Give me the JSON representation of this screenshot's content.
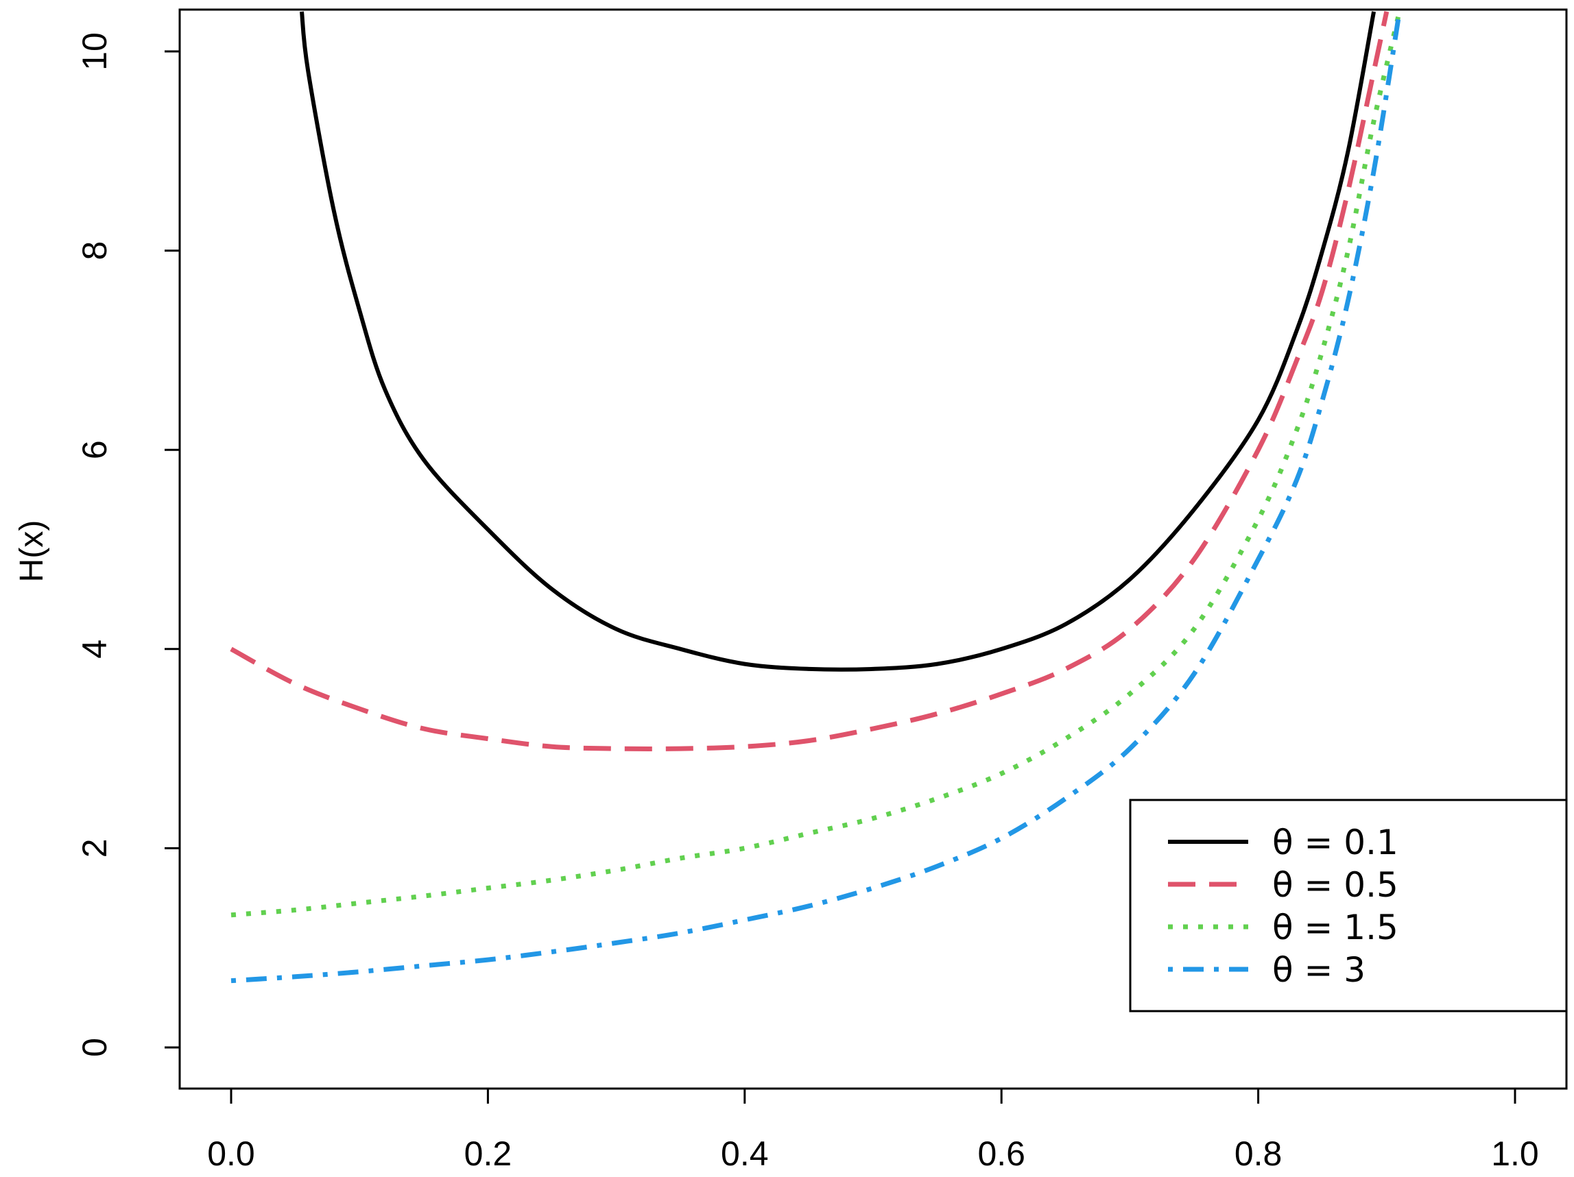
{
  "chart_data": {
    "type": "line",
    "title": "",
    "xlabel": "",
    "ylabel": "H(x)",
    "xlim": [
      0,
      1
    ],
    "ylim": [
      0,
      10
    ],
    "x_ticks": [
      0.0,
      0.2,
      0.4,
      0.6,
      0.8,
      1.0
    ],
    "x_tick_labels": [
      "0.0",
      "0.2",
      "0.4",
      "0.6",
      "0.8",
      "1.0"
    ],
    "y_ticks": [
      0,
      2,
      4,
      6,
      8,
      10
    ],
    "y_tick_labels": [
      "0",
      "2",
      "4",
      "6",
      "8",
      "10"
    ],
    "grid": false,
    "legend_position": "bottom-right",
    "series": [
      {
        "name": "θ = 0.1",
        "color": "#000000",
        "style": "solid",
        "x": [
          0.055,
          0.06,
          0.08,
          0.1,
          0.12,
          0.15,
          0.2,
          0.25,
          0.3,
          0.35,
          0.4,
          0.45,
          0.5,
          0.55,
          0.6,
          0.65,
          0.7,
          0.75,
          0.8,
          0.83,
          0.85,
          0.87,
          0.89
        ],
        "y": [
          10.4,
          9.8,
          8.4,
          7.4,
          6.6,
          5.9,
          5.2,
          4.6,
          4.2,
          4.0,
          3.85,
          3.8,
          3.8,
          3.85,
          4.0,
          4.25,
          4.7,
          5.4,
          6.3,
          7.2,
          8.0,
          9.0,
          10.4
        ],
        "y_top_clip": true
      },
      {
        "name": "θ = 0.5",
        "color": "#DF536B",
        "style": "dashed",
        "x": [
          0.0,
          0.05,
          0.1,
          0.15,
          0.2,
          0.25,
          0.3,
          0.35,
          0.4,
          0.45,
          0.5,
          0.55,
          0.6,
          0.65,
          0.7,
          0.75,
          0.8,
          0.83,
          0.85,
          0.87,
          0.89,
          0.9
        ],
        "y": [
          4.0,
          3.65,
          3.4,
          3.2,
          3.1,
          3.02,
          3.0,
          3.0,
          3.02,
          3.08,
          3.2,
          3.35,
          3.55,
          3.8,
          4.2,
          4.9,
          6.0,
          6.9,
          7.6,
          8.6,
          9.8,
          10.4
        ]
      },
      {
        "name": "θ = 1.5",
        "color": "#61D04F",
        "style": "dotted",
        "x": [
          0.0,
          0.05,
          0.1,
          0.15,
          0.2,
          0.25,
          0.3,
          0.35,
          0.4,
          0.45,
          0.5,
          0.55,
          0.6,
          0.65,
          0.7,
          0.75,
          0.8,
          0.83,
          0.85,
          0.87,
          0.89,
          0.91
        ],
        "y": [
          1.33,
          1.38,
          1.45,
          1.52,
          1.6,
          1.68,
          1.78,
          1.9,
          2.0,
          2.15,
          2.3,
          2.5,
          2.75,
          3.1,
          3.55,
          4.2,
          5.3,
          6.2,
          7.0,
          8.0,
          9.3,
          10.4
        ]
      },
      {
        "name": "θ = 3",
        "color": "#2297E6",
        "style": "dotdash",
        "x": [
          0.0,
          0.05,
          0.1,
          0.15,
          0.2,
          0.25,
          0.3,
          0.35,
          0.4,
          0.45,
          0.5,
          0.55,
          0.6,
          0.65,
          0.7,
          0.75,
          0.8,
          0.83,
          0.85,
          0.87,
          0.89,
          0.91
        ],
        "y": [
          0.67,
          0.71,
          0.76,
          0.82,
          0.88,
          0.96,
          1.05,
          1.15,
          1.28,
          1.42,
          1.6,
          1.82,
          2.1,
          2.5,
          3.0,
          3.75,
          4.9,
          5.7,
          6.5,
          7.5,
          8.8,
          10.4
        ]
      }
    ]
  }
}
